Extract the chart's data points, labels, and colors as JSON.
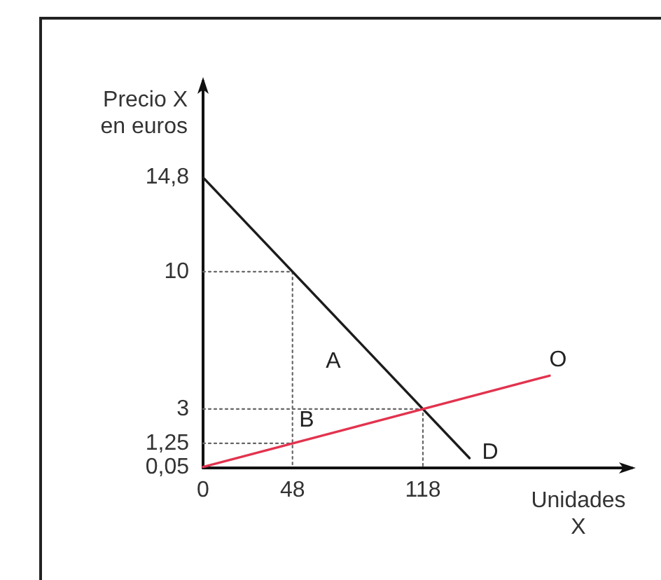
{
  "chart_data": {
    "type": "line",
    "xlabel": "Unidades\nX",
    "ylabel": "Precio X\nen euros",
    "xlim": [
      0,
      230
    ],
    "ylim": [
      0,
      19.7
    ],
    "xticks": [
      0,
      48,
      118
    ],
    "yticks": [
      {
        "value": 0.05,
        "label": "0,05"
      },
      {
        "value": 1.25,
        "label": "1,25"
      },
      3,
      10,
      {
        "value": 14.8,
        "label": "14,8"
      }
    ],
    "marker": "none",
    "line_style": "solid",
    "series": [
      {
        "name": "D",
        "color": "#1c1c1c",
        "x": [
          0,
          143
        ],
        "values": [
          14.8,
          0.5
        ]
      },
      {
        "name": "O",
        "color": "#e2334e",
        "x": [
          0,
          186
        ],
        "values": [
          0.05,
          4.7
        ]
      },
      {
        "color": "#666666",
        "x": [
          0,
          48,
          48
        ],
        "values": [
          10,
          10,
          0
        ],
        "line_style": "dotted"
      },
      {
        "color": "#666666",
        "x": [
          0,
          118,
          118
        ],
        "values": [
          3,
          3,
          0
        ],
        "line_style": "dotted"
      },
      {
        "color": "#666666",
        "x": [
          0,
          48
        ],
        "values": [
          1.25,
          1.25
        ],
        "line_style": "dotted"
      }
    ],
    "annotations": [
      "A",
      "B"
    ]
  }
}
